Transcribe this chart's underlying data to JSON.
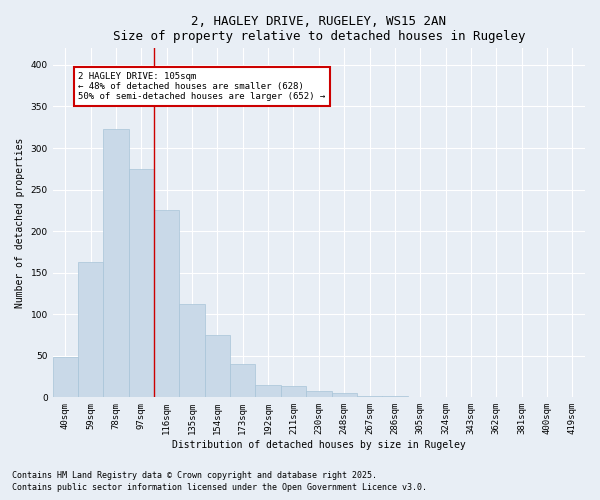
{
  "title": "2, HAGLEY DRIVE, RUGELEY, WS15 2AN",
  "subtitle": "Size of property relative to detached houses in Rugeley",
  "xlabel": "Distribution of detached houses by size in Rugeley",
  "ylabel": "Number of detached properties",
  "bar_labels": [
    "40sqm",
    "59sqm",
    "78sqm",
    "97sqm",
    "116sqm",
    "135sqm",
    "154sqm",
    "173sqm",
    "192sqm",
    "211sqm",
    "230sqm",
    "248sqm",
    "267sqm",
    "286sqm",
    "305sqm",
    "324sqm",
    "343sqm",
    "362sqm",
    "381sqm",
    "400sqm",
    "419sqm"
  ],
  "bar_values": [
    48,
    163,
    323,
    275,
    225,
    112,
    75,
    40,
    15,
    14,
    8,
    5,
    2,
    2,
    0,
    0,
    1,
    0,
    0,
    1,
    1
  ],
  "bar_color": "#c9d9e8",
  "bar_edge_color": "#a8c4d8",
  "vline_x": 3.5,
  "vline_color": "#cc0000",
  "annotation_text": "2 HAGLEY DRIVE: 105sqm\n← 48% of detached houses are smaller (628)\n50% of semi-detached houses are larger (652) →",
  "annotation_box_color": "#cc0000",
  "ylim": [
    0,
    420
  ],
  "yticks": [
    0,
    50,
    100,
    150,
    200,
    250,
    300,
    350,
    400
  ],
  "footer1": "Contains HM Land Registry data © Crown copyright and database right 2025.",
  "footer2": "Contains public sector information licensed under the Open Government Licence v3.0.",
  "bg_color": "#e8eef5",
  "plot_bg_color": "#e8eef5",
  "title_fontsize": 9,
  "axis_fontsize": 7,
  "tick_fontsize": 6.5,
  "footer_fontsize": 6
}
